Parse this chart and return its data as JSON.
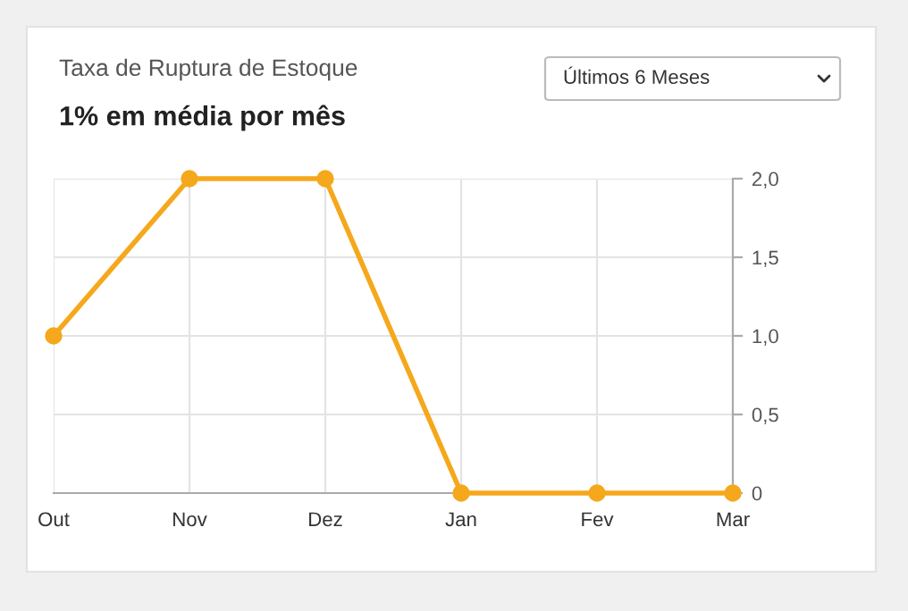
{
  "chart_data": {
    "type": "line",
    "title": "Taxa de Ruptura de Estoque",
    "subtitle": "1% em média por mês",
    "annotations": [
      "Últimos 6 Meses"
    ],
    "categories": [
      "Out",
      "Nov",
      "Dez",
      "Jan",
      "Fev",
      "Mar"
    ],
    "series": [
      {
        "color": "#f5a81c",
        "values": [
          1,
          2,
          2,
          0,
          0,
          0
        ]
      }
    ],
    "ylim": [
      0,
      2
    ],
    "yticks": [
      {
        "value": 0,
        "label": "0"
      },
      {
        "value": 0.5,
        "label": "0,5"
      },
      {
        "value": 1,
        "label": "1,0"
      },
      {
        "value": 1.5,
        "label": "1,5"
      },
      {
        "value": 2,
        "label": "2,0"
      }
    ],
    "grid": true,
    "marker": "circle",
    "line_style": "solid"
  }
}
